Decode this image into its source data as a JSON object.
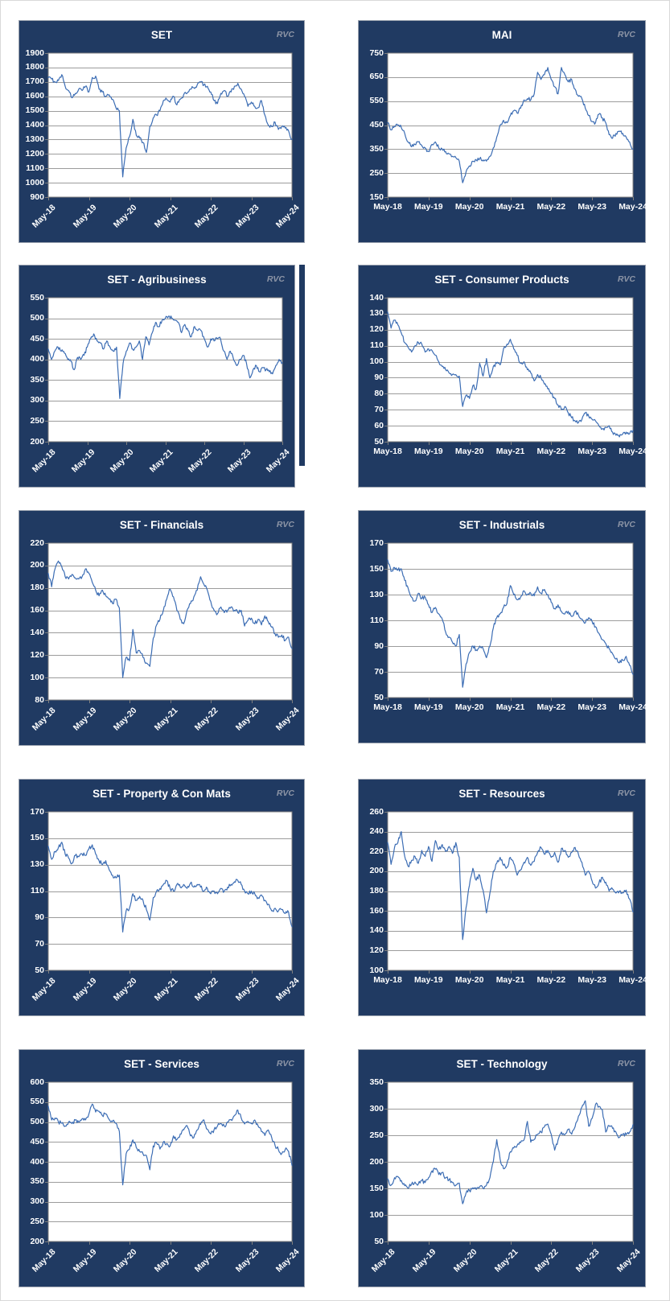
{
  "watermark": "RVC",
  "colors": {
    "frame_navy": "#203a62",
    "line_blue": "#3c6db4",
    "gridline": "#9c9c9c",
    "plot_border": "#7f7f7f",
    "watermark_gray": "#8d95a6",
    "label_white": "#ffffff"
  },
  "x_axis_labels": [
    "May-18",
    "May-19",
    "May-20",
    "May-21",
    "May-22",
    "May-23",
    "May-24"
  ],
  "chart_data": [
    {
      "type": "line",
      "title": "SET",
      "freq": "monthly",
      "ylim": [
        900,
        1900
      ],
      "ytick_step": 100,
      "y_ticks": [
        "1900",
        "1800",
        "1700",
        "1600",
        "1500",
        "1400",
        "1300",
        "1200",
        "1100",
        "1000",
        "900"
      ],
      "x_tick_labels": [
        "May-18",
        "May-19",
        "May-20",
        "May-21",
        "May-22",
        "May-23",
        "May-24"
      ],
      "x_rotated": true,
      "values": [
        1730,
        1720,
        1700,
        1710,
        1750,
        1670,
        1640,
        1590,
        1620,
        1650,
        1640,
        1670,
        1630,
        1730,
        1740,
        1650,
        1630,
        1600,
        1610,
        1580,
        1520,
        1500,
        1040,
        1240,
        1320,
        1440,
        1330,
        1310,
        1280,
        1210,
        1390,
        1450,
        1470,
        1500,
        1570,
        1580,
        1560,
        1600,
        1540,
        1580,
        1610,
        1620,
        1650,
        1660,
        1680,
        1700,
        1680,
        1670,
        1630,
        1570,
        1550,
        1620,
        1640,
        1600,
        1630,
        1670,
        1690,
        1650,
        1600,
        1530,
        1560,
        1530,
        1520,
        1570,
        1470,
        1400,
        1390,
        1420,
        1370,
        1390,
        1380,
        1360,
        1300
      ]
    },
    {
      "type": "line",
      "title": "MAI",
      "freq": "monthly",
      "ylim": [
        150,
        750
      ],
      "ytick_step": 100,
      "y_ticks": [
        "750",
        "650",
        "550",
        "450",
        "350",
        "250",
        "150"
      ],
      "x_tick_labels": [
        "May-18",
        "May-19",
        "May-20",
        "May-21",
        "May-22",
        "May-23",
        "May-24"
      ],
      "x_rotated": false,
      "values": [
        460,
        430,
        445,
        450,
        440,
        415,
        380,
        360,
        370,
        380,
        365,
        355,
        340,
        370,
        380,
        355,
        350,
        340,
        330,
        320,
        315,
        300,
        210,
        255,
        280,
        300,
        305,
        310,
        305,
        300,
        320,
        355,
        400,
        450,
        470,
        460,
        490,
        510,
        500,
        520,
        555,
        560,
        555,
        580,
        670,
        640,
        660,
        690,
        640,
        610,
        580,
        690,
        660,
        630,
        640,
        600,
        570,
        560,
        520,
        490,
        465,
        460,
        495,
        480,
        460,
        410,
        395,
        415,
        425,
        415,
        400,
        380,
        350
      ]
    },
    {
      "type": "line",
      "title": "SET - Agribusiness",
      "freq": "monthly",
      "ylim": [
        200,
        550
      ],
      "ytick_step": 50,
      "y_ticks": [
        "550",
        "500",
        "450",
        "400",
        "350",
        "300",
        "250",
        "200"
      ],
      "x_tick_labels": [
        "May-18",
        "May-19",
        "May-20",
        "May-21",
        "May-22",
        "May-23",
        "May-24"
      ],
      "x_rotated": true,
      "values": [
        425,
        400,
        420,
        430,
        420,
        415,
        400,
        395,
        375,
        405,
        400,
        410,
        430,
        450,
        462,
        445,
        440,
        425,
        445,
        430,
        420,
        430,
        305,
        390,
        420,
        440,
        425,
        430,
        445,
        400,
        455,
        435,
        465,
        490,
        480,
        495,
        500,
        505,
        500,
        495,
        490,
        465,
        485,
        470,
        455,
        480,
        470,
        470,
        450,
        430,
        450,
        445,
        450,
        450,
        420,
        400,
        420,
        400,
        385,
        400,
        410,
        390,
        355,
        375,
        385,
        370,
        380,
        375,
        370,
        365,
        385,
        400,
        392
      ]
    },
    {
      "type": "line",
      "title": "SET - Consumer Products",
      "freq": "monthly",
      "ylim": [
        50,
        140
      ],
      "ytick_step": 10,
      "y_ticks": [
        "140",
        "130",
        "120",
        "110",
        "100",
        "90",
        "80",
        "70",
        "60",
        "50"
      ],
      "x_tick_labels": [
        "May-18",
        "May-19",
        "May-20",
        "May-21",
        "May-22",
        "May-23",
        "May-24"
      ],
      "x_rotated": false,
      "values": [
        131,
        121,
        126,
        123,
        118,
        112,
        109,
        106,
        110,
        112,
        111,
        106,
        108,
        107,
        104,
        100,
        97,
        95,
        93,
        92,
        92,
        91,
        72,
        79,
        77,
        85,
        83,
        99,
        91,
        102,
        90,
        97,
        99,
        98,
        108,
        111,
        114,
        108,
        104,
        99,
        100,
        95,
        93,
        88,
        92,
        90,
        86,
        83,
        80,
        77,
        73,
        70,
        72,
        68,
        65,
        63,
        62,
        64,
        68,
        66,
        64,
        63,
        60,
        58,
        59,
        60,
        56,
        54,
        53,
        55,
        56,
        55,
        57
      ]
    },
    {
      "type": "line",
      "title": "SET - Financials",
      "freq": "monthly",
      "ylim": [
        80,
        220
      ],
      "ytick_step": 20,
      "y_ticks": [
        "220",
        "200",
        "180",
        "160",
        "140",
        "120",
        "100",
        "80"
      ],
      "x_tick_labels": [
        "May-18",
        "May-19",
        "May-20",
        "May-21",
        "May-22",
        "May-23",
        "May-24"
      ],
      "x_rotated": true,
      "values": [
        193,
        181,
        197,
        204,
        199,
        190,
        188,
        192,
        189,
        188,
        190,
        197,
        193,
        185,
        178,
        173,
        178,
        173,
        170,
        166,
        170,
        162,
        100,
        118,
        115,
        143,
        122,
        124,
        118,
        113,
        110,
        135,
        147,
        152,
        160,
        170,
        179,
        172,
        160,
        152,
        148,
        160,
        166,
        172,
        178,
        190,
        183,
        178,
        168,
        160,
        157,
        163,
        158,
        160,
        163,
        160,
        158,
        160,
        146,
        151,
        153,
        148,
        152,
        147,
        155,
        150,
        145,
        139,
        136,
        138,
        133,
        136,
        126
      ]
    },
    {
      "type": "line",
      "title": "SET - Industrials",
      "freq": "monthly",
      "ylim": [
        50,
        170
      ],
      "ytick_step": 20,
      "y_ticks": [
        "170",
        "150",
        "130",
        "110",
        "90",
        "70",
        "50"
      ],
      "x_tick_labels": [
        "May-18",
        "May-19",
        "May-20",
        "May-21",
        "May-22",
        "May-23",
        "May-24"
      ],
      "x_rotated": false,
      "values": [
        157,
        148,
        151,
        149,
        150,
        141,
        135,
        128,
        125,
        131,
        127,
        128,
        122,
        116,
        120,
        115,
        111,
        101,
        97,
        93,
        90,
        99,
        58,
        76,
        85,
        90,
        87,
        90,
        88,
        81,
        90,
        104,
        112,
        115,
        120,
        123,
        137,
        130,
        126,
        128,
        133,
        130,
        131,
        129,
        136,
        131,
        134,
        130,
        124,
        119,
        122,
        117,
        115,
        117,
        113,
        117,
        114,
        111,
        108,
        112,
        109,
        105,
        100,
        95,
        92,
        88,
        84,
        80,
        77,
        79,
        82,
        75,
        68
      ]
    },
    {
      "type": "line",
      "title": "SET - Property & Con Mats",
      "freq": "monthly",
      "ylim": [
        50,
        170
      ],
      "ytick_step": 20,
      "y_ticks": [
        "170",
        "150",
        "130",
        "110",
        "90",
        "70",
        "50"
      ],
      "x_tick_labels": [
        "May-18",
        "May-19",
        "May-20",
        "May-21",
        "May-22",
        "May-23",
        "May-24"
      ],
      "x_rotated": true,
      "values": [
        144,
        134,
        140,
        143,
        147,
        138,
        135,
        131,
        137,
        136,
        138,
        137,
        142,
        145,
        138,
        133,
        130,
        133,
        126,
        122,
        120,
        122,
        79,
        95,
        97,
        108,
        103,
        106,
        103,
        96,
        88,
        105,
        110,
        112,
        115,
        118,
        112,
        110,
        115,
        113,
        115,
        112,
        116,
        113,
        115,
        113,
        110,
        112,
        108,
        110,
        108,
        112,
        110,
        113,
        115,
        117,
        118,
        115,
        110,
        108,
        110,
        108,
        105,
        107,
        103,
        100,
        95,
        97,
        95,
        96,
        93,
        94,
        83
      ]
    },
    {
      "type": "line",
      "title": "SET - Resources",
      "freq": "monthly",
      "ylim": [
        100,
        260
      ],
      "ytick_step": 20,
      "y_ticks": [
        "260",
        "240",
        "220",
        "200",
        "180",
        "160",
        "140",
        "120",
        "100"
      ],
      "x_tick_labels": [
        "May-18",
        "May-19",
        "May-20",
        "May-21",
        "May-22",
        "May-23",
        "May-24"
      ],
      "x_rotated": false,
      "values": [
        229,
        207,
        224,
        229,
        240,
        215,
        205,
        211,
        215,
        208,
        221,
        215,
        225,
        210,
        231,
        222,
        227,
        220,
        225,
        218,
        229,
        214,
        131,
        163,
        186,
        203,
        191,
        196,
        181,
        158,
        178,
        200,
        208,
        214,
        206,
        204,
        214,
        208,
        196,
        201,
        209,
        214,
        206,
        210,
        219,
        224,
        217,
        221,
        214,
        219,
        209,
        223,
        221,
        214,
        219,
        224,
        217,
        209,
        196,
        200,
        190,
        183,
        188,
        194,
        189,
        180,
        182,
        178,
        180,
        178,
        181,
        172,
        159
      ]
    },
    {
      "type": "line",
      "title": "SET - Services",
      "freq": "monthly",
      "ylim": [
        200,
        600
      ],
      "ytick_step": 50,
      "y_ticks": [
        "600",
        "550",
        "500",
        "450",
        "400",
        "350",
        "300",
        "250",
        "200"
      ],
      "x_tick_labels": [
        "May-18",
        "May-19",
        "May-20",
        "May-21",
        "May-22",
        "May-23",
        "May-24"
      ],
      "x_rotated": true,
      "values": [
        540,
        505,
        510,
        500,
        497,
        490,
        500,
        496,
        505,
        500,
        508,
        505,
        520,
        545,
        525,
        527,
        516,
        520,
        506,
        501,
        497,
        476,
        342,
        420,
        432,
        455,
        436,
        426,
        420,
        416,
        380,
        440,
        447,
        432,
        450,
        446,
        440,
        465,
        456,
        470,
        480,
        491,
        465,
        461,
        480,
        494,
        505,
        482,
        470,
        481,
        490,
        496,
        490,
        500,
        506,
        516,
        530,
        510,
        495,
        501,
        496,
        505,
        490,
        476,
        466,
        480,
        461,
        441,
        430,
        421,
        431,
        426,
        391
      ]
    },
    {
      "type": "line",
      "title": "SET - Technology",
      "freq": "monthly",
      "ylim": [
        50,
        350
      ],
      "ytick_step": 50,
      "y_ticks": [
        "350",
        "300",
        "250",
        "200",
        "150",
        "100",
        "50"
      ],
      "x_tick_labels": [
        "May-18",
        "May-19",
        "May-20",
        "May-21",
        "May-22",
        "May-23",
        "May-24"
      ],
      "x_rotated": true,
      "values": [
        168,
        156,
        170,
        172,
        165,
        155,
        150,
        158,
        162,
        158,
        165,
        161,
        170,
        183,
        186,
        176,
        180,
        170,
        166,
        161,
        156,
        160,
        121,
        141,
        146,
        151,
        148,
        153,
        150,
        156,
        170,
        200,
        242,
        205,
        187,
        197,
        219,
        226,
        231,
        236,
        241,
        276,
        237,
        242,
        252,
        256,
        266,
        271,
        252,
        222,
        241,
        256,
        251,
        261,
        252,
        266,
        286,
        303,
        315,
        267,
        282,
        308,
        304,
        298,
        256,
        268,
        263,
        256,
        246,
        252,
        251,
        256,
        270
      ]
    }
  ]
}
